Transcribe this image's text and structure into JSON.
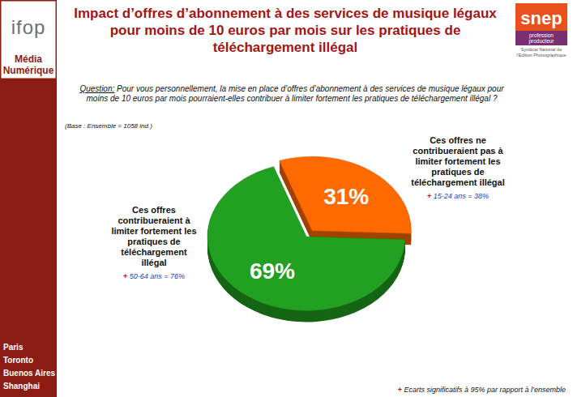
{
  "chart_data": {
    "type": "pie",
    "title": "Impact d’offres d’abonnement à des services de musique légaux pour moins de 10 euros par mois sur les pratiques de téléchargement illégal",
    "question_label": "Question:",
    "question": "Pour vous personnellement, la mise en place d’offres d’abonnement à des services de musique légaux pour moins de 10 euros par mois pourraient-elles contribuer à limiter fortement les pratiques de téléchargement illégal ?",
    "base": "(Base : Ensemble = 1058 ind.)",
    "categories": [
      "Ces offres contribueraient à limiter fortement les pratiques de téléchargement illégal",
      "Ces offres ne contribueraient pas à limiter fortement les pratiques de téléchargement illégal"
    ],
    "values": [
      69,
      31
    ],
    "value_labels": [
      "69%",
      "31%"
    ],
    "colors": [
      "#22a022",
      "#ff6a00"
    ],
    "data_labels": true,
    "annotations": [
      {
        "symbol": "+",
        "text": "50-64 ans = 76%"
      },
      {
        "symbol": "+",
        "text": "15-24 ans = 38%"
      }
    ],
    "footnote": {
      "symbol": "+",
      "text": "Ecarts significatifs à 95% par rapport à l’ensemble"
    }
  },
  "branding": {
    "institute": "ifop",
    "section": "Média Numérique",
    "offices": [
      "Paris",
      "Toronto",
      "Buenos Aires",
      "Shanghai"
    ],
    "partner": "snep",
    "partner_tagline": "profession producteur",
    "partner_name": "Syndicat National de l’Edition Phonographique"
  }
}
